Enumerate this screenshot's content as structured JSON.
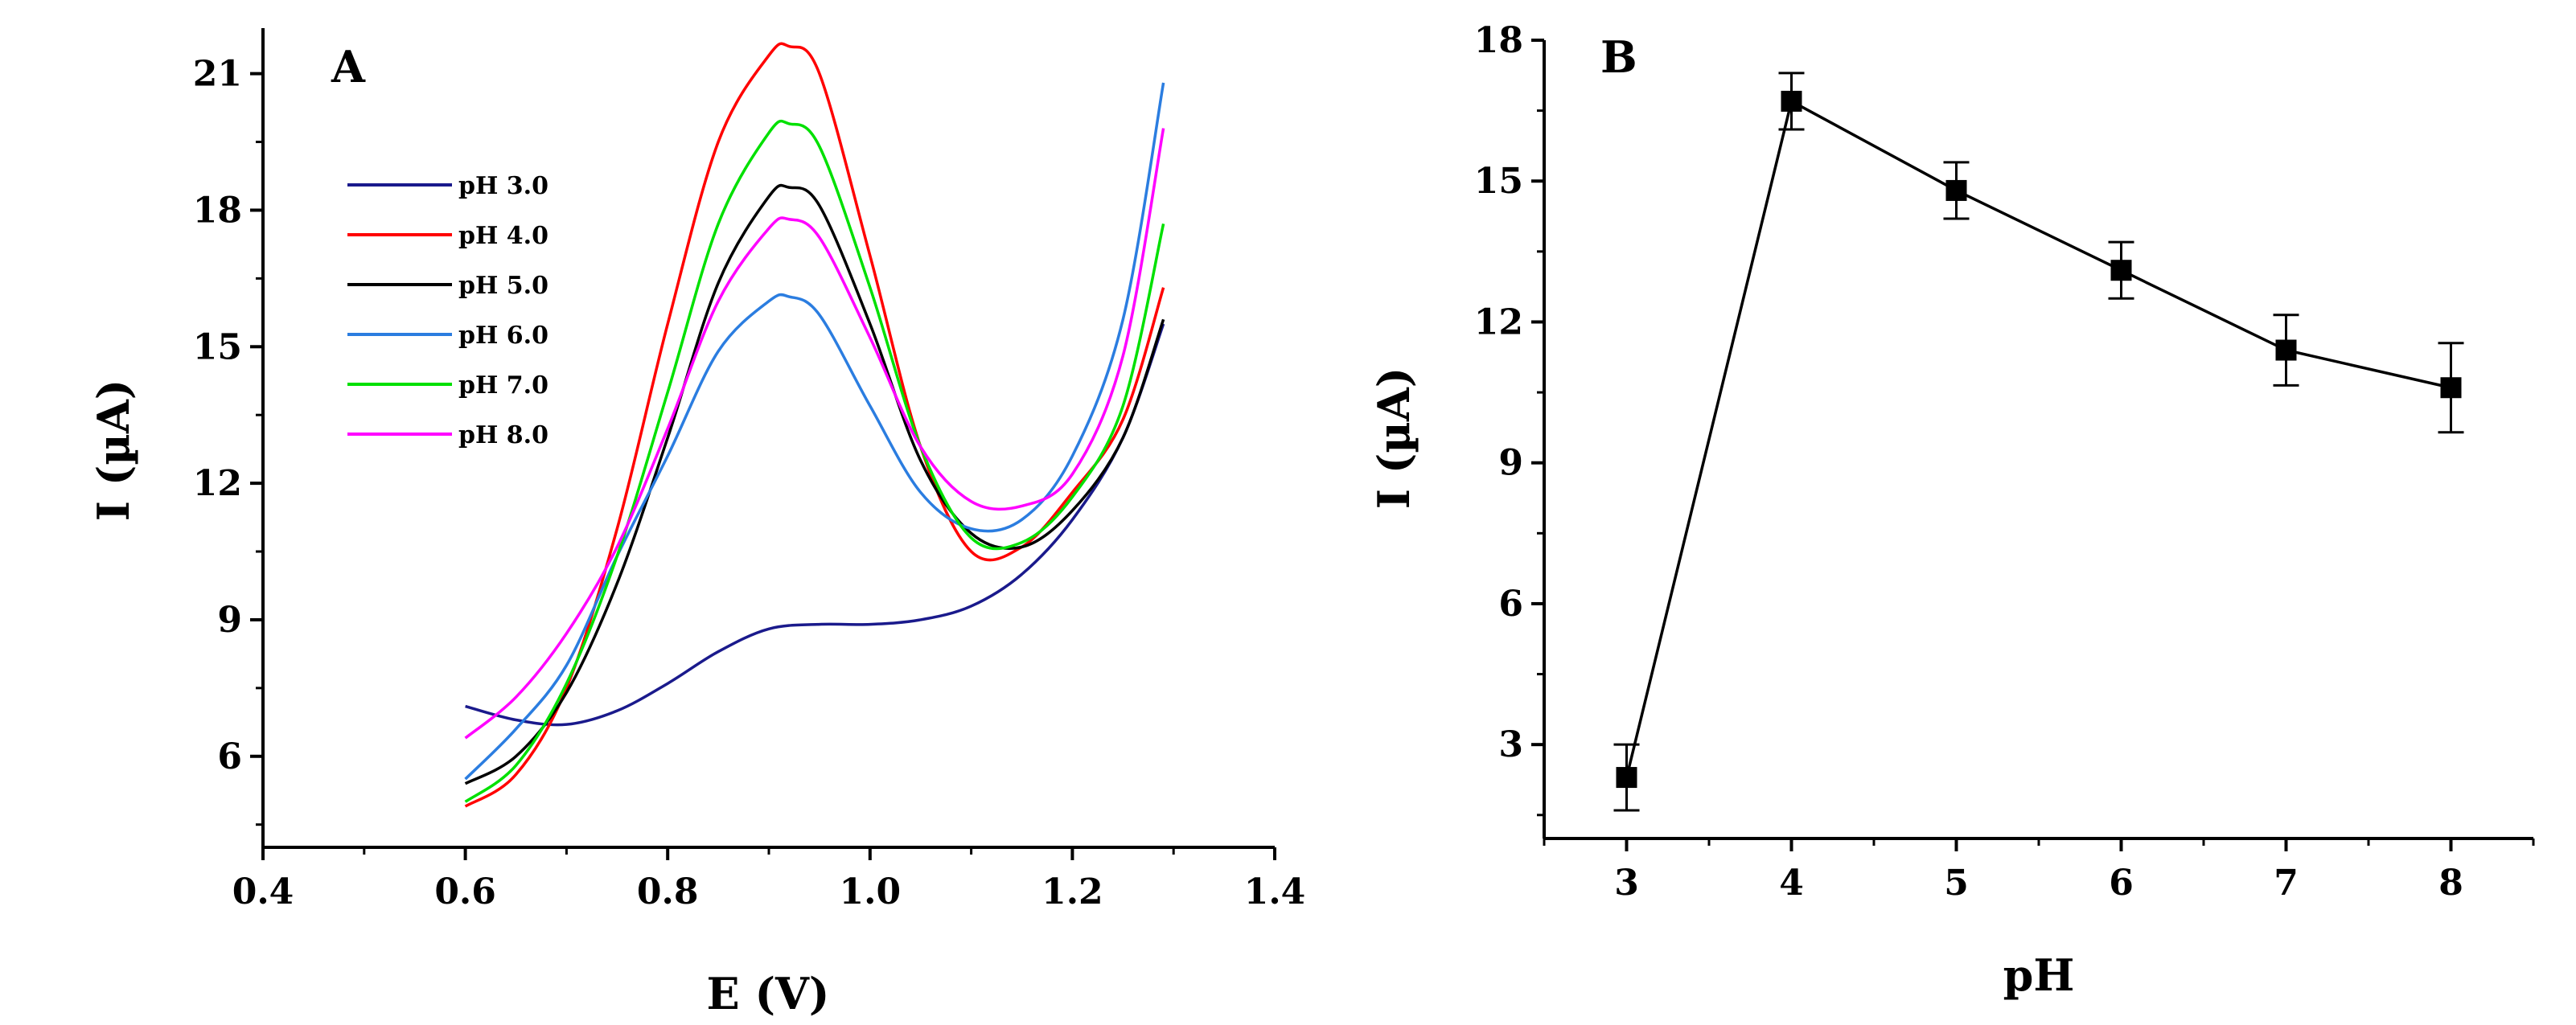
{
  "chart_data": [
    {
      "panel": "A",
      "type": "line",
      "xlabel": "E (V)",
      "ylabel": "I (µA)",
      "xlim": [
        0.4,
        1.4
      ],
      "ylim": [
        4.0,
        22.0
      ],
      "xticks": [
        0.4,
        0.6,
        0.8,
        1.0,
        1.2,
        1.4
      ],
      "xtick_labels": [
        "0.4",
        "0.6",
        "0.8",
        "1.0",
        "1.2",
        "1.4"
      ],
      "yticks": [
        6,
        9,
        12,
        15,
        18,
        21
      ],
      "ytick_labels": [
        "6",
        "9",
        "12",
        "15",
        "18",
        "21"
      ],
      "legend_position": "upper-left",
      "series": [
        {
          "name": "pH 3.0",
          "color": "#1a1a8c",
          "x": [
            0.6,
            0.65,
            0.7,
            0.75,
            0.8,
            0.85,
            0.9,
            0.95,
            1.0,
            1.05,
            1.1,
            1.15,
            1.2,
            1.25,
            1.29
          ],
          "y": [
            7.1,
            6.8,
            6.7,
            7.0,
            7.6,
            8.3,
            8.8,
            8.9,
            8.9,
            9.0,
            9.3,
            10.0,
            11.2,
            13.0,
            15.5
          ]
        },
        {
          "name": "pH 4.0",
          "color": "#ff0000",
          "x": [
            0.6,
            0.65,
            0.7,
            0.75,
            0.8,
            0.85,
            0.9,
            0.92,
            0.95,
            1.0,
            1.05,
            1.1,
            1.15,
            1.2,
            1.25,
            1.29
          ],
          "y": [
            4.9,
            5.6,
            7.5,
            11.0,
            15.5,
            19.5,
            21.4,
            21.6,
            21.0,
            17.0,
            12.8,
            10.5,
            10.6,
            11.8,
            13.4,
            16.3
          ]
        },
        {
          "name": "pH 5.0",
          "color": "#000000",
          "x": [
            0.6,
            0.65,
            0.7,
            0.75,
            0.8,
            0.85,
            0.9,
            0.92,
            0.95,
            1.0,
            1.05,
            1.1,
            1.15,
            1.2,
            1.25,
            1.29
          ],
          "y": [
            5.4,
            6.0,
            7.4,
            9.8,
            13.0,
            16.4,
            18.3,
            18.5,
            18.1,
            15.5,
            12.5,
            10.9,
            10.6,
            11.4,
            13.0,
            15.6
          ]
        },
        {
          "name": "pH 6.0",
          "color": "#2b7de0",
          "x": [
            0.6,
            0.65,
            0.7,
            0.75,
            0.8,
            0.85,
            0.9,
            0.92,
            0.95,
            1.0,
            1.05,
            1.1,
            1.15,
            1.2,
            1.25,
            1.29
          ],
          "y": [
            5.5,
            6.6,
            8.0,
            10.4,
            12.6,
            14.9,
            16.0,
            16.1,
            15.7,
            13.7,
            11.8,
            11.0,
            11.2,
            12.6,
            15.6,
            20.8
          ]
        },
        {
          "name": "pH 7.0",
          "color": "#00e000",
          "x": [
            0.6,
            0.65,
            0.7,
            0.75,
            0.8,
            0.85,
            0.9,
            0.92,
            0.95,
            1.0,
            1.05,
            1.1,
            1.15,
            1.2,
            1.25,
            1.29
          ],
          "y": [
            5.0,
            5.8,
            7.6,
            10.4,
            14.0,
            17.7,
            19.7,
            19.9,
            19.4,
            16.3,
            12.8,
            10.8,
            10.7,
            11.7,
            13.7,
            17.7
          ]
        },
        {
          "name": "pH 8.0",
          "color": "#ff00ff",
          "x": [
            0.6,
            0.65,
            0.7,
            0.75,
            0.8,
            0.85,
            0.9,
            0.92,
            0.95,
            1.0,
            1.05,
            1.1,
            1.15,
            1.2,
            1.25,
            1.29
          ],
          "y": [
            6.4,
            7.3,
            8.7,
            10.6,
            13.2,
            16.0,
            17.6,
            17.8,
            17.4,
            15.2,
            12.8,
            11.6,
            11.5,
            12.2,
            14.8,
            19.8
          ]
        }
      ]
    },
    {
      "panel": "B",
      "type": "scatter",
      "xlabel": "pH",
      "ylabel": "I (µA)",
      "xlim": [
        2.5,
        8.5
      ],
      "ylim": [
        1.0,
        18.0
      ],
      "xticks": [
        3,
        4,
        5,
        6,
        7,
        8
      ],
      "xtick_labels": [
        "3",
        "4",
        "5",
        "6",
        "7",
        "8"
      ],
      "yticks": [
        3,
        6,
        9,
        12,
        15,
        18
      ],
      "ytick_labels": [
        "3",
        "6",
        "9",
        "12",
        "15",
        "18"
      ],
      "color": "#000000",
      "x": [
        3,
        4,
        5,
        6,
        7,
        8
      ],
      "y": [
        2.3,
        16.7,
        14.8,
        13.1,
        11.4,
        10.6
      ],
      "error": [
        0.7,
        0.6,
        0.6,
        0.6,
        0.75,
        0.95
      ]
    }
  ]
}
